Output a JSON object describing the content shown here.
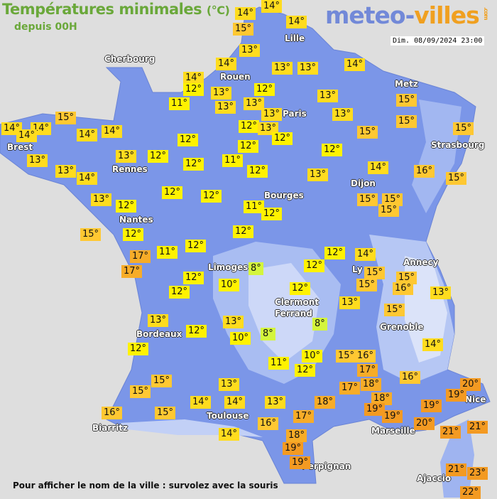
{
  "header": {
    "title": "Températures minimales",
    "unit": "(°C)",
    "subtitle": "depuis 00H",
    "datetime": "Dim. 08/09/2024 23:00"
  },
  "logo": {
    "main": "meteo-",
    "accent": "villes",
    "tld": ".com"
  },
  "footer": "Pour afficher le nom de la ville : survolez avec la souris",
  "colors": {
    "background": "#dedede",
    "land": "#7b96e8",
    "highland": "#b6c7f4",
    "mountain": "#dbe3f9",
    "t8": "#d4f53c",
    "t10_12": "#fff200",
    "t13_14": "#ffdc1e",
    "t15_16": "#ffc832",
    "t17_18": "#f7ac28",
    "t19_plus": "#f39a22"
  },
  "cities": [
    "Cherbourg",
    "Lille",
    "Rouen",
    "Metz",
    "Paris",
    "Brest",
    "Strasbourg",
    "Rennes",
    "Dijon",
    "Bourges",
    "Nantes",
    "Annecy",
    "Limoges",
    "Ly",
    "Clermont",
    "Ferrand",
    "Grenoble",
    "Bordeaux",
    "Toulouse",
    "Nice",
    "Biarritz",
    "Marseille",
    "Perpignan",
    "Ajaccio"
  ],
  "temperatures": [
    "14°",
    "14°",
    "14°",
    "15°",
    "13°",
    "14°",
    "13°",
    "13°",
    "14°",
    "14°",
    "12°",
    "13°",
    "12°",
    "13°",
    "11°",
    "13°",
    "13°",
    "13°",
    "13°",
    "15°",
    "15°",
    "15°",
    "14°",
    "14°",
    "14°",
    "14°",
    "14°",
    "12°",
    "13°",
    "12°",
    "15°",
    "15°",
    "12°",
    "12°",
    "12°",
    "13°",
    "13°",
    "12°",
    "12°",
    "11°",
    "14°",
    "16°",
    "13°",
    "14°",
    "12°",
    "13°",
    "15°",
    "12°",
    "12°",
    "13°",
    "12°",
    "11°",
    "12°",
    "15°",
    "15°",
    "15°",
    "15°",
    "12°",
    "12°",
    "17°",
    "11°",
    "12°",
    "12°",
    "14°",
    "17°",
    "8°",
    "12°",
    "15°",
    "15°",
    "12°",
    "12°",
    "10°",
    "12°",
    "15°",
    "16°",
    "13°",
    "13°",
    "15°",
    "13°",
    "13°",
    "8°",
    "12°",
    "10°",
    "8°",
    "12°",
    "14°",
    "10°",
    "15°",
    "16°",
    "11°",
    "12°",
    "17°",
    "16°",
    "13°",
    "15°",
    "17°",
    "18°",
    "20°",
    "15°",
    "19°",
    "18°",
    "14°",
    "14°",
    "13°",
    "18°",
    "19°",
    "19°",
    "16°",
    "15°",
    "17°",
    "19°",
    "20°",
    "21°",
    "21°",
    "16°",
    "14°",
    "18°",
    "19°",
    "19°",
    "21°",
    "23°",
    "22°"
  ]
}
